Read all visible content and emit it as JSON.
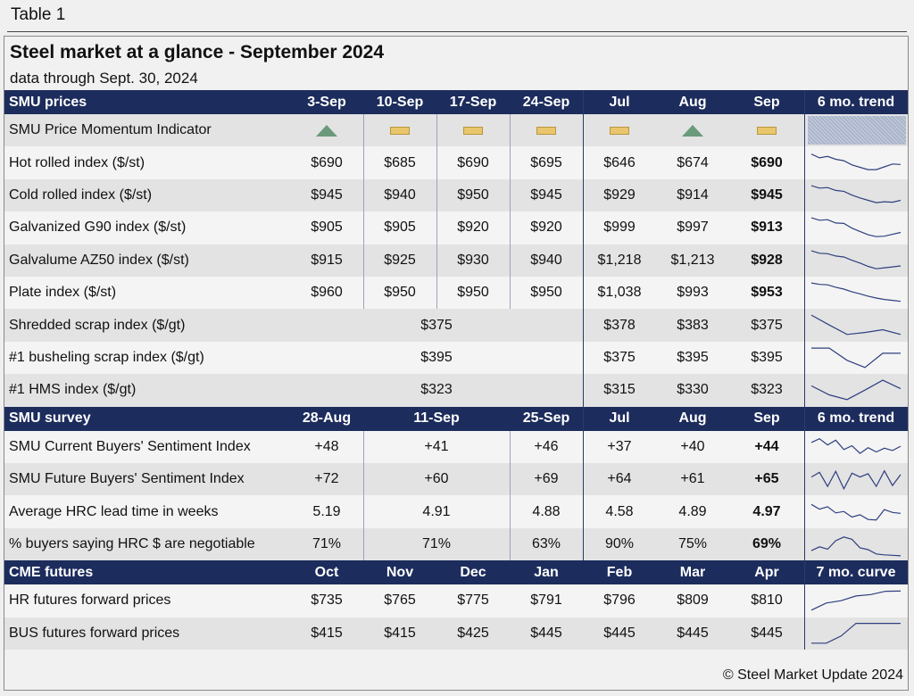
{
  "table_label": "Table 1",
  "title": "Steel market at a glance - September 2024",
  "subtitle": "data through Sept. 30, 2024",
  "watermark": "SteelMarketUpdate",
  "footer": "© Steel Market Update 2024",
  "sections": {
    "prices": {
      "header": [
        "SMU prices",
        "3-Sep",
        "10-Sep",
        "17-Sep",
        "24-Sep",
        "Jul",
        "Aug",
        "Sep",
        "6 mo. trend"
      ],
      "momentum": {
        "label": "SMU Price Momentum Indicator",
        "symbols": [
          "up",
          "flat",
          "flat",
          "flat",
          "flat",
          "up",
          "flat"
        ]
      },
      "rows": [
        {
          "label": "Hot rolled index ($/st)",
          "values": [
            "$690",
            "$685",
            "$690",
            "$695",
            "$646",
            "$674",
            "$690"
          ],
          "trend": [
            0.86,
            0.7,
            0.76,
            0.64,
            0.58,
            0.4,
            0.3,
            0.2,
            0.2,
            0.32,
            0.44,
            0.42
          ]
        },
        {
          "label": "Cold rolled index ($/st)",
          "values": [
            "$945",
            "$940",
            "$950",
            "$945",
            "$929",
            "$914",
            "$945"
          ],
          "trend": [
            0.92,
            0.82,
            0.84,
            0.72,
            0.68,
            0.52,
            0.4,
            0.3,
            0.2,
            0.24,
            0.22,
            0.3
          ]
        },
        {
          "label": "Galvanized G90 index ($/st)",
          "values": [
            "$905",
            "$905",
            "$920",
            "$920",
            "$999",
            "$997",
            "$913"
          ],
          "trend": [
            0.92,
            0.82,
            0.84,
            0.7,
            0.68,
            0.48,
            0.34,
            0.2,
            0.12,
            0.14,
            0.22,
            0.3
          ]
        },
        {
          "label": "Galvalume AZ50 index ($/st)",
          "values": [
            "$915",
            "$925",
            "$930",
            "$940",
            "$1,218",
            "$1,213",
            "$928"
          ],
          "trend": [
            0.92,
            0.82,
            0.8,
            0.7,
            0.66,
            0.52,
            0.4,
            0.26,
            0.16,
            0.2,
            0.24,
            0.28
          ]
        },
        {
          "label": "Plate index ($/st)",
          "values": [
            "$960",
            "$950",
            "$950",
            "$950",
            "$1,038",
            "$993",
            "$953"
          ],
          "trend": [
            0.92,
            0.86,
            0.84,
            0.74,
            0.66,
            0.54,
            0.46,
            0.36,
            0.28,
            0.22,
            0.18,
            0.14
          ]
        },
        {
          "label": "Shredded scrap index ($/gt)",
          "merged": "$375",
          "values": [
            "$378",
            "$383",
            "$375"
          ],
          "trend": [
            0.92,
            0.5,
            0.1,
            0.18,
            0.3,
            0.1
          ]
        },
        {
          "label": "#1 busheling scrap index ($/gt)",
          "merged": "$395",
          "values": [
            "$375",
            "$395",
            "$395"
          ],
          "trend": [
            0.92,
            0.92,
            0.4,
            0.1,
            0.7,
            0.7
          ]
        },
        {
          "label": "#1 HMS index ($/gt)",
          "merged": "$323",
          "values": [
            "$315",
            "$330",
            "$323"
          ],
          "trend": [
            0.68,
            0.3,
            0.1,
            0.5,
            0.92,
            0.56
          ]
        }
      ]
    },
    "survey": {
      "header": [
        "SMU survey",
        "28-Aug",
        "11-Sep",
        "25-Sep",
        "Jul",
        "Aug",
        "Sep",
        "6 mo. trend"
      ],
      "rows": [
        {
          "label": "SMU Current Buyers' Sentiment Index",
          "values": [
            "+48",
            "+41",
            "+46",
            "+37",
            "+40",
            "+44"
          ],
          "trend": [
            0.7,
            0.86,
            0.6,
            0.8,
            0.4,
            0.56,
            0.24,
            0.48,
            0.3,
            0.46,
            0.36,
            0.54
          ]
        },
        {
          "label": "SMU Future Buyers' Sentiment Index",
          "values": [
            "+72",
            "+60",
            "+69",
            "+64",
            "+61",
            "+65"
          ],
          "trend": [
            0.6,
            0.8,
            0.2,
            0.84,
            0.1,
            0.76,
            0.6,
            0.74,
            0.2,
            0.86,
            0.24,
            0.7
          ]
        },
        {
          "label": "Average HRC lead time in weeks",
          "values": [
            "5.19",
            "4.91",
            "4.88",
            "4.58",
            "4.89",
            "4.97"
          ],
          "trend": [
            0.8,
            0.6,
            0.7,
            0.44,
            0.5,
            0.26,
            0.36,
            0.16,
            0.14,
            0.58,
            0.46,
            0.42
          ]
        },
        {
          "label": "% buyers saying HRC $ are negotiable",
          "values": [
            "71%",
            "71%",
            "63%",
            "90%",
            "75%",
            "69%"
          ],
          "trend": [
            0.24,
            0.4,
            0.3,
            0.66,
            0.82,
            0.72,
            0.36,
            0.28,
            0.1,
            0.06,
            0.04,
            0.02
          ]
        }
      ]
    },
    "cme": {
      "header": [
        "CME futures",
        "Oct",
        "Nov",
        "Dec",
        "Jan",
        "Feb",
        "Mar",
        "Apr",
        "7 mo. curve"
      ],
      "rows": [
        {
          "label": "HR futures forward prices",
          "values": [
            "$735",
            "$765",
            "$775",
            "$791",
            "$796",
            "$809",
            "$810"
          ],
          "trend": [
            0.1,
            0.4,
            0.5,
            0.7,
            0.76,
            0.9,
            0.91
          ]
        },
        {
          "label": "BUS futures forward prices",
          "values": [
            "$415",
            "$415",
            "$425",
            "$445",
            "$445",
            "$445",
            "$445"
          ],
          "trend": [
            0.1,
            0.1,
            0.4,
            0.94,
            0.94,
            0.94,
            0.94
          ]
        }
      ]
    }
  }
}
